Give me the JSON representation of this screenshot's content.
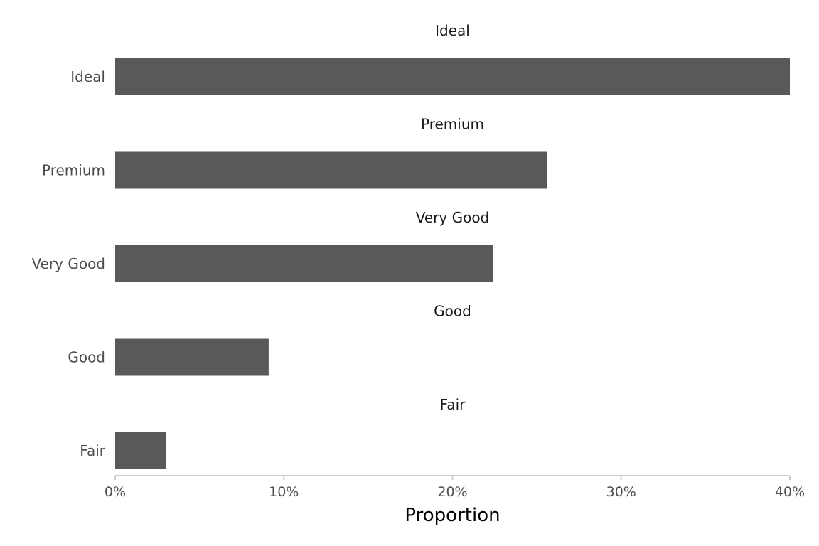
{
  "chart_data": {
    "type": "bar",
    "orientation": "horizontal",
    "facets": [
      "Ideal",
      "Premium",
      "Very Good",
      "Good",
      "Fair"
    ],
    "categories": [
      "Ideal",
      "Premium",
      "Very Good",
      "Good",
      "Fair"
    ],
    "values": [
      0.4,
      0.256,
      0.224,
      0.091,
      0.03
    ],
    "xlabel": "Proportion",
    "ylabel": "",
    "title": "",
    "xlim": [
      0,
      0.4
    ],
    "xticks": [
      0,
      0.1,
      0.2,
      0.3,
      0.4
    ],
    "xtick_labels": [
      "0%",
      "10%",
      "20%",
      "30%",
      "40%"
    ],
    "grid": false,
    "bar_color": "#595959",
    "axis_color": "#cccccc"
  }
}
